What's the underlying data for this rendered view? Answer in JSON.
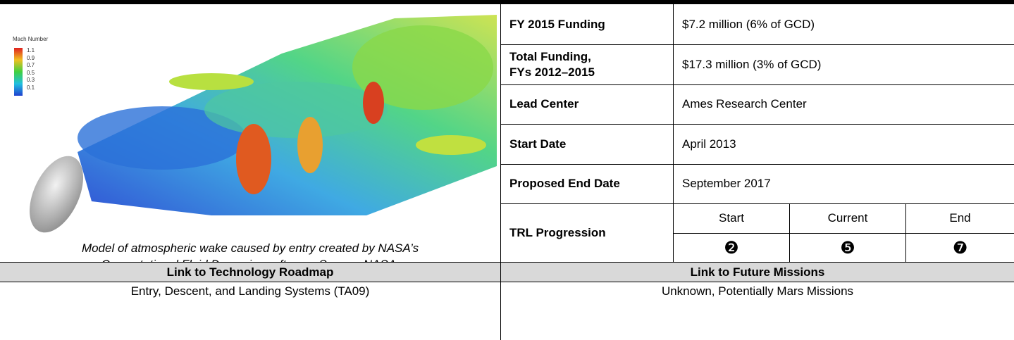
{
  "figure": {
    "legend_title": "Mach Number",
    "legend_labels": [
      "1.1",
      "0.9",
      "0.7",
      "0.5",
      "0.3",
      "0.1"
    ],
    "caption": [
      "Model of atmospheric wake caused by entry created by NASA’s",
      "Computational Fluid Dynamics software.  Source: NASA."
    ]
  },
  "table": {
    "rows": [
      {
        "label": [
          "FY 2015 Funding"
        ],
        "value": "$7.2 million (6% of GCD)"
      },
      {
        "label": [
          "Total Funding,",
          "FYs 2012–2015"
        ],
        "value": "$17.3 million (3% of GCD)"
      },
      {
        "label": [
          "Lead Center"
        ],
        "value": "Ames Research Center"
      },
      {
        "label": [
          "Start Date"
        ],
        "value": "April 2013"
      },
      {
        "label": [
          "Proposed End Date"
        ],
        "value": "September 2017"
      }
    ],
    "trl": {
      "label": "TRL Progression",
      "headers": [
        "Start",
        "Current",
        "End"
      ],
      "values": [
        "❷",
        "❺",
        "❼"
      ]
    }
  },
  "links": {
    "headers": [
      "Link to Technology Roadmap",
      "Link to Future Missions"
    ],
    "values": [
      "Entry, Descent, and Landing Systems (TA09)",
      "Unknown, Potentially Mars Missions"
    ]
  }
}
